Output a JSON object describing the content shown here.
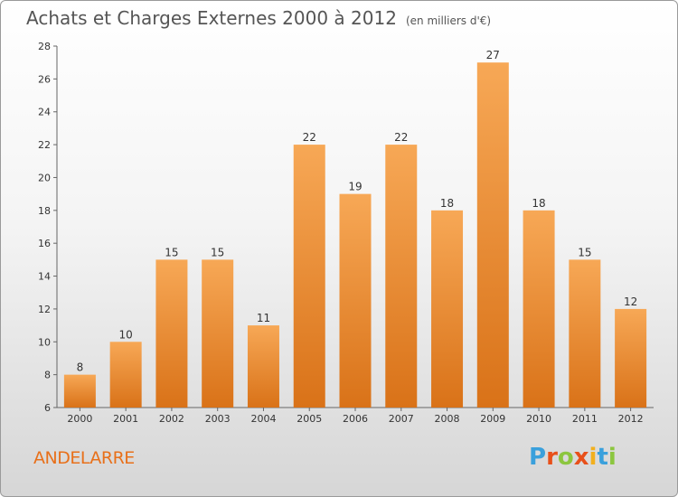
{
  "title": "Achats et Charges Externes 2000 à 2012",
  "unit": "(en milliers d'€)",
  "commune": "ANDELARRE",
  "logo": {
    "letters": [
      "P",
      "r",
      "o",
      "x",
      "i",
      "t",
      "i"
    ],
    "colors": [
      "#3aa0dc",
      "#e8501a",
      "#8cc63f",
      "#e8501a",
      "#f2b01e",
      "#3aa0dc",
      "#8cc63f"
    ]
  },
  "colors": {
    "bar_light": "#f7a856",
    "bar_dark": "#d97218",
    "accent": "#e8701a"
  },
  "chart_data": {
    "type": "bar",
    "categories": [
      "2000",
      "2001",
      "2002",
      "2003",
      "2004",
      "2005",
      "2006",
      "2007",
      "2008",
      "2009",
      "2010",
      "2011",
      "2012"
    ],
    "values": [
      8,
      10,
      15,
      15,
      11,
      22,
      19,
      22,
      18,
      27,
      18,
      15,
      12
    ],
    "ylim": [
      6,
      28
    ],
    "yticks": [
      6,
      8,
      10,
      12,
      14,
      16,
      18,
      20,
      22,
      24,
      26,
      28
    ],
    "grid": false,
    "title": "Achats et Charges Externes 2000 à 2012",
    "xlabel": "",
    "ylabel": ""
  }
}
